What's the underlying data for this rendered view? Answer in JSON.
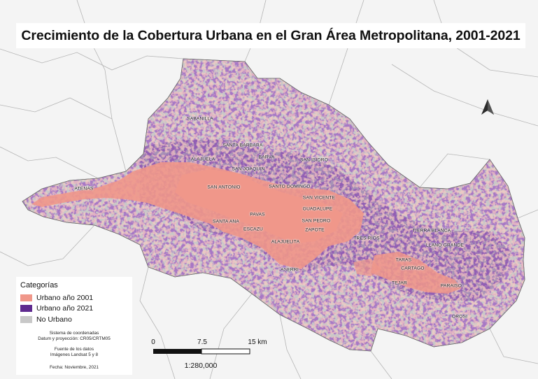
{
  "title": "Crecimiento de la Cobertura Urbana en el Gran Área Metropolitana, 2001-2021",
  "legend": {
    "title": "Categorías",
    "items": [
      {
        "label": "Urbano año 2001",
        "color": "#f0978a"
      },
      {
        "label": "Urbano año 2021",
        "color": "#5f2a8f"
      },
      {
        "label": "No Urbano",
        "color": "#c8c8c8"
      }
    ]
  },
  "metadata": {
    "crs_title": "Sistema de coordenadas",
    "crs_value": "Datum y proyección: CR05/CRTM05",
    "source_title": "Fuente de los datos",
    "source_value": "Imágenes Landsat 5 y 8",
    "date": "Fecha: Noviembre, 2021"
  },
  "scale_bar": {
    "ticks": [
      "0",
      "7.5",
      "15 km"
    ],
    "ratio": "1:280,000"
  },
  "north_arrow": {
    "icon": "north-arrow-icon"
  },
  "places": [
    {
      "id": "sabanilla",
      "label": "SABANILLA"
    },
    {
      "id": "santa-barbara",
      "label": "SANTA BARBARA"
    },
    {
      "id": "alajuela",
      "label": "ALAJUELA"
    },
    {
      "id": "barva",
      "label": "BARVA"
    },
    {
      "id": "san-isidro",
      "label": "SAN ISIDRO"
    },
    {
      "id": "san-joaquin",
      "label": "SAN JOAQUIN"
    },
    {
      "id": "atenas",
      "label": "ATENAS"
    },
    {
      "id": "san-antonio",
      "label": "SAN ANTONIO"
    },
    {
      "id": "santo-domingo",
      "label": "SANTO DOMINGO"
    },
    {
      "id": "san-vicente",
      "label": "SAN VICENTE"
    },
    {
      "id": "guadalupe",
      "label": "GUADALUPE"
    },
    {
      "id": "pavas",
      "label": "PAVAS"
    },
    {
      "id": "santa-ana",
      "label": "SANTA ANA"
    },
    {
      "id": "san-pedro",
      "label": "SAN PEDRO"
    },
    {
      "id": "escazu",
      "label": "ESCAZU"
    },
    {
      "id": "zapote",
      "label": "ZAPOTE"
    },
    {
      "id": "tres-rios",
      "label": "TRES RIOS"
    },
    {
      "id": "alajuelita",
      "label": "ALAJUELITA"
    },
    {
      "id": "tierra-blanca",
      "label": "TIERRA BLANCA"
    },
    {
      "id": "llano-grande",
      "label": "LLANO GRANDE"
    },
    {
      "id": "aserri",
      "label": "ASERRI"
    },
    {
      "id": "taras",
      "label": "TARAS"
    },
    {
      "id": "cartago",
      "label": "CARTAGO"
    },
    {
      "id": "tejar",
      "label": "TEJAR"
    },
    {
      "id": "paraiso",
      "label": "PARAISO"
    },
    {
      "id": "orosi",
      "label": "OROSI"
    }
  ]
}
